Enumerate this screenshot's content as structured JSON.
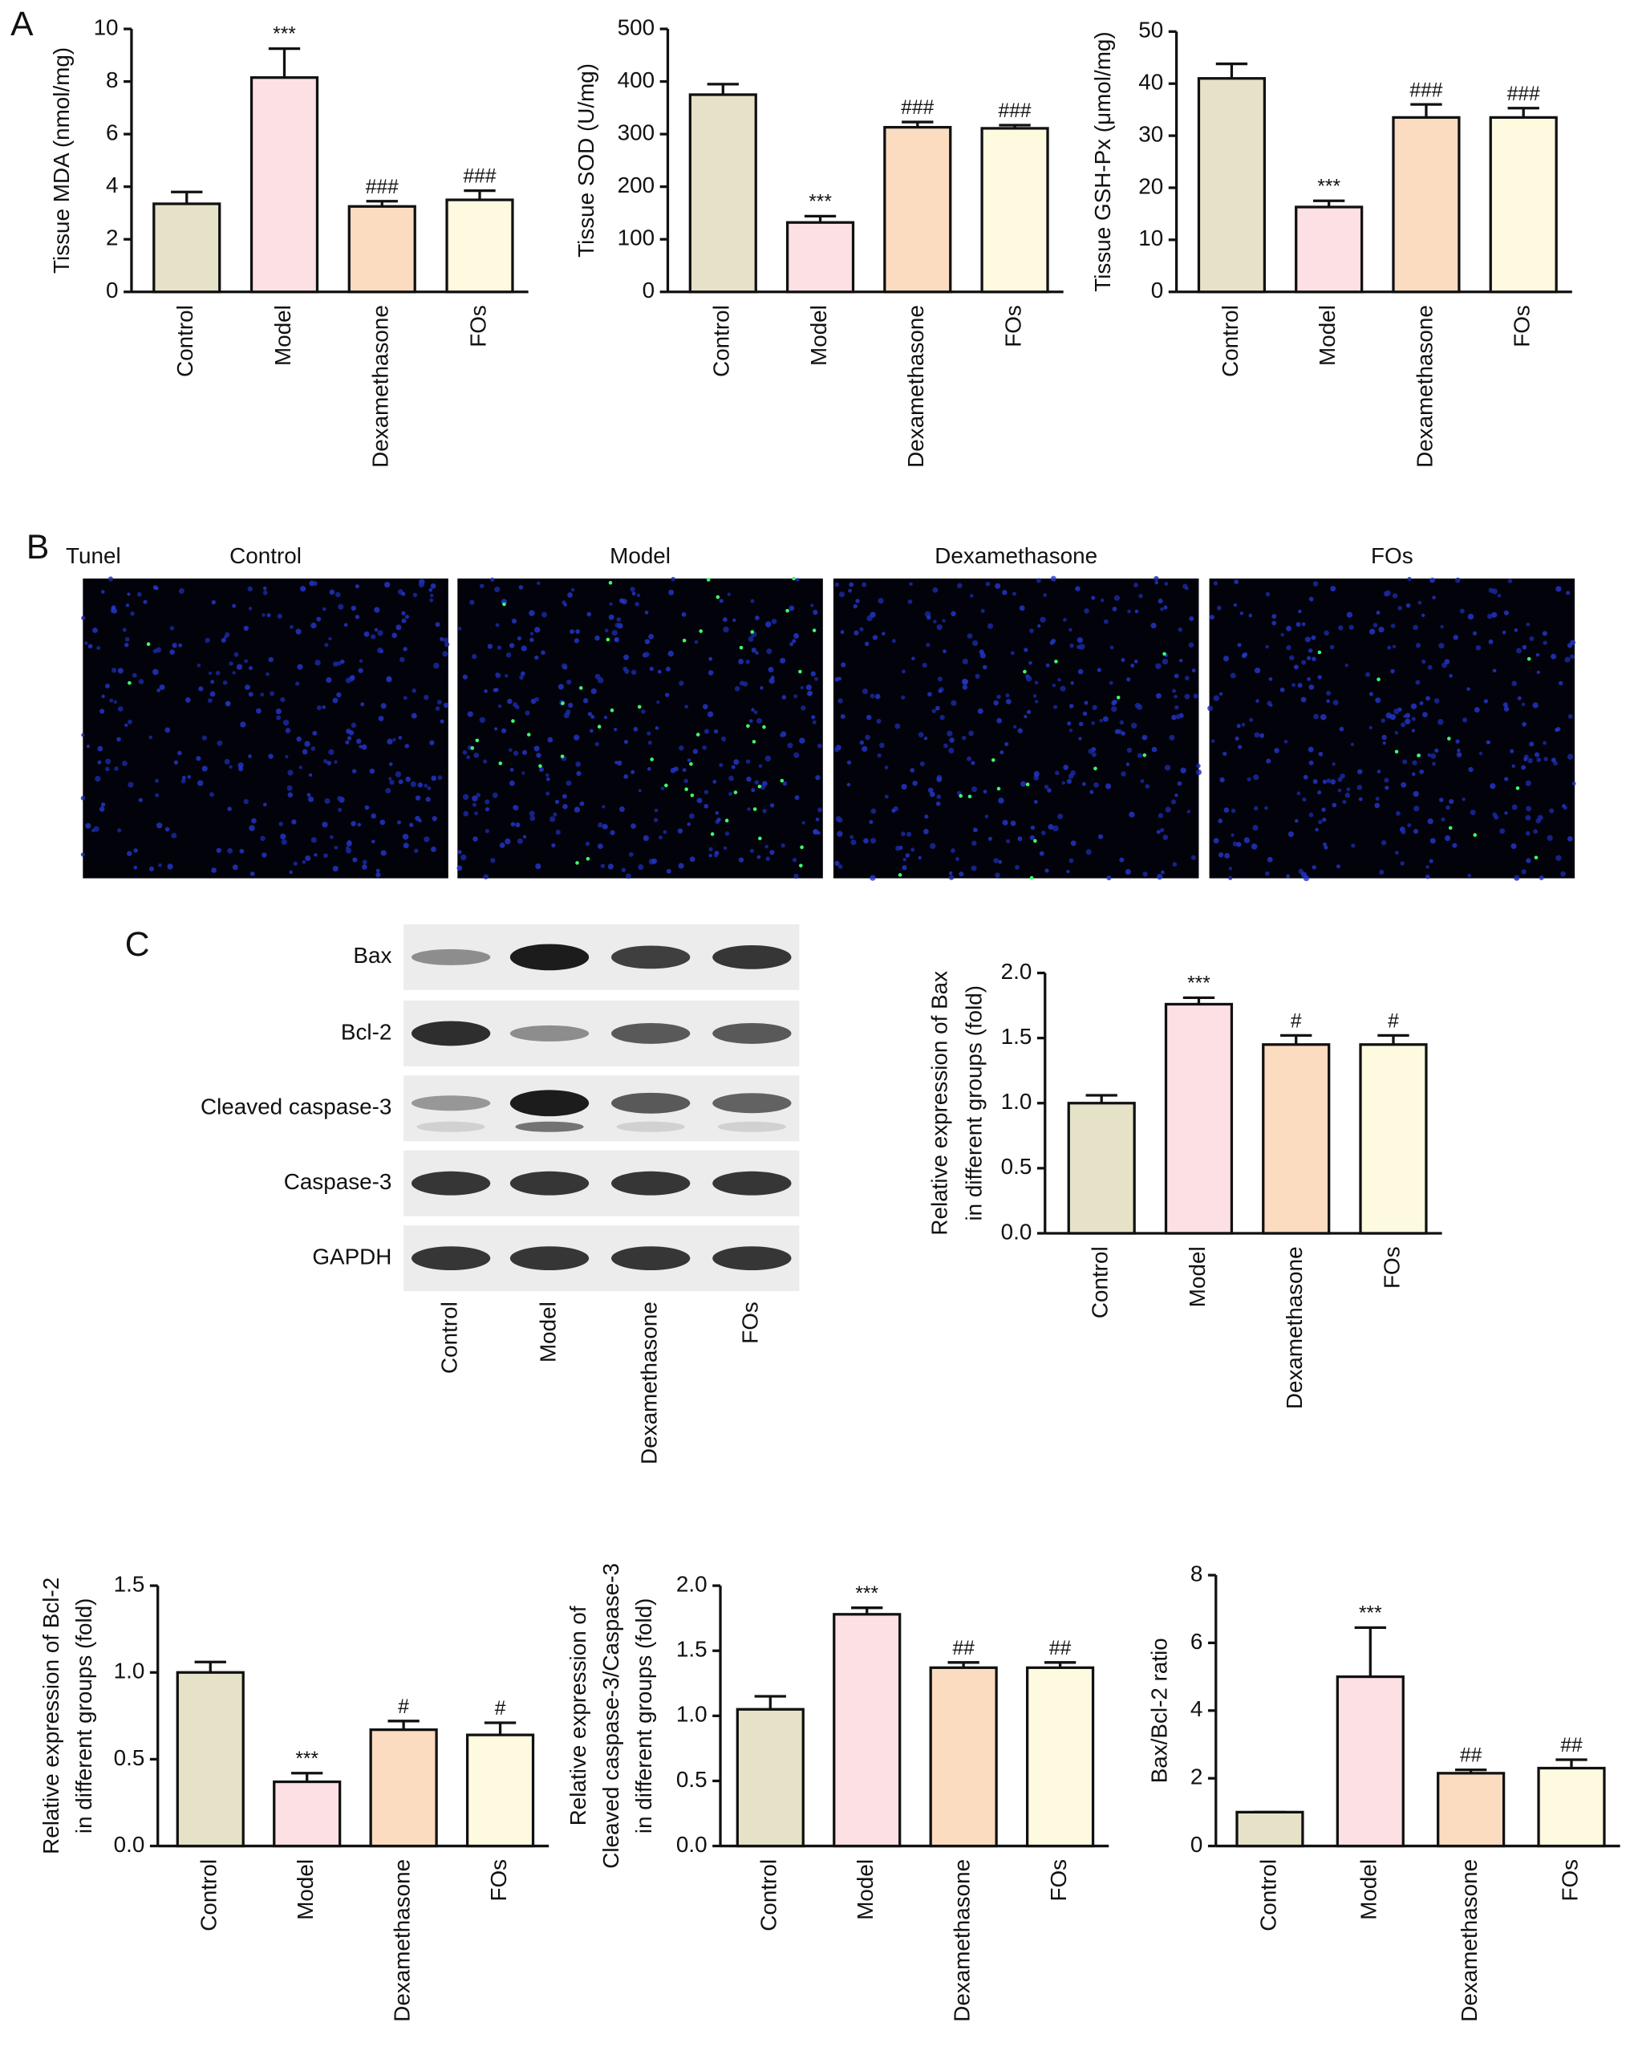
{
  "figure": {
    "panel_labels": [
      "A",
      "B",
      "C"
    ],
    "tunel": {
      "label": "Tunel",
      "groups": [
        "Control",
        "Model",
        "Dexamethasone",
        "FOs"
      ]
    },
    "blot": {
      "rows": [
        "Bax",
        "Bcl-2",
        "Cleaved caspase-3",
        "Caspase-3",
        "GAPDH"
      ],
      "lanes": [
        "Control",
        "Model",
        "Dexamethasone",
        "FOs"
      ]
    }
  },
  "chart_data": [
    {
      "type": "bar",
      "y_label": [
        "Tissue MDA (nmol/mg)"
      ],
      "categories": [
        "Control",
        "Model",
        "Dexamethasone",
        "FOs"
      ],
      "values": [
        3.35,
        8.15,
        3.25,
        3.5
      ],
      "errors": [
        0.45,
        1.1,
        0.2,
        0.35
      ],
      "annotations": [
        null,
        "***",
        "###",
        "###"
      ],
      "colors": [
        "#e6e2c8",
        "#fde0e4",
        "#fbdcc0",
        "#fefae0"
      ],
      "ylim": [
        0,
        10
      ],
      "yticks": [
        0,
        2,
        4,
        6,
        8,
        10
      ]
    },
    {
      "type": "bar",
      "y_label": [
        "Tissue SOD (U/mg)"
      ],
      "categories": [
        "Control",
        "Model",
        "Dexamethasone",
        "FOs"
      ],
      "values": [
        375,
        132,
        313,
        311
      ],
      "errors": [
        20,
        12,
        10,
        6
      ],
      "annotations": [
        null,
        "***",
        "###",
        "###"
      ],
      "colors": [
        "#e6e2c8",
        "#fde0e4",
        "#fbdcc0",
        "#fefae0"
      ],
      "ylim": [
        0,
        500
      ],
      "yticks": [
        0,
        100,
        200,
        300,
        400,
        500
      ]
    },
    {
      "type": "bar",
      "y_label": [
        "Tissue GSH-Px (μmol/mg)"
      ],
      "categories": [
        "Control",
        "Model",
        "Dexamethasone",
        "FOs"
      ],
      "values": [
        41,
        16.3,
        33.5,
        33.5
      ],
      "errors": [
        2.8,
        1.2,
        2.5,
        1.8
      ],
      "annotations": [
        null,
        "***",
        "###",
        "###"
      ],
      "colors": [
        "#e6e2c8",
        "#fde0e4",
        "#fbdcc0",
        "#fefae0"
      ],
      "ylim": [
        0,
        50
      ],
      "yticks": [
        0,
        10,
        20,
        30,
        40,
        50
      ]
    },
    {
      "type": "bar",
      "y_label": [
        "Relative expression of Bax",
        "in different groups (fold)"
      ],
      "categories": [
        "Control",
        "Model",
        "Dexamethasone",
        "FOs"
      ],
      "values": [
        1.0,
        1.76,
        1.45,
        1.45
      ],
      "errors": [
        0.06,
        0.05,
        0.07,
        0.07
      ],
      "annotations": [
        null,
        "***",
        "#",
        "#"
      ],
      "colors": [
        "#e6e2c8",
        "#fde0e4",
        "#fbdcc0",
        "#fefae0"
      ],
      "ylim": [
        0,
        2
      ],
      "yticks": [
        {
          "value": 0,
          "label": "0.0"
        },
        0.5,
        {
          "value": 1,
          "label": "1.0"
        },
        1.5,
        {
          "value": 2,
          "label": "2.0"
        }
      ]
    },
    {
      "type": "bar",
      "y_label": [
        "Relative expression of Bcl-2",
        "in different groups (fold)"
      ],
      "categories": [
        "Control",
        "Model",
        "Dexamethasone",
        "FOs"
      ],
      "values": [
        1.0,
        0.37,
        0.67,
        0.64
      ],
      "errors": [
        0.06,
        0.05,
        0.05,
        0.07
      ],
      "annotations": [
        null,
        "***",
        "#",
        "#"
      ],
      "colors": [
        "#e6e2c8",
        "#fde0e4",
        "#fbdcc0",
        "#fefae0"
      ],
      "ylim": [
        0,
        1.5
      ],
      "yticks": [
        {
          "value": 0,
          "label": "0.0"
        },
        0.5,
        {
          "value": 1,
          "label": "1.0"
        },
        1.5
      ]
    },
    {
      "type": "bar",
      "y_label": [
        "Relative expression of",
        "Cleaved caspase-3/Caspase-3",
        "in different groups (fold)"
      ],
      "categories": [
        "Control",
        "Model",
        "Dexamethasone",
        "FOs"
      ],
      "values": [
        1.05,
        1.78,
        1.37,
        1.37
      ],
      "errors": [
        0.1,
        0.05,
        0.04,
        0.04
      ],
      "annotations": [
        null,
        "***",
        "##",
        "##"
      ],
      "colors": [
        "#e6e2c8",
        "#fde0e4",
        "#fbdcc0",
        "#fefae0"
      ],
      "ylim": [
        0,
        2
      ],
      "yticks": [
        {
          "value": 0,
          "label": "0.0"
        },
        0.5,
        {
          "value": 1,
          "label": "1.0"
        },
        1.5,
        {
          "value": 2,
          "label": "2.0"
        }
      ]
    },
    {
      "type": "bar",
      "y_label": [
        "Bax/Bcl-2 ratio"
      ],
      "categories": [
        "Control",
        "Model",
        "Dexamethasone",
        "FOs"
      ],
      "values": [
        1.0,
        5.0,
        2.15,
        2.3
      ],
      "errors": [
        0,
        1.45,
        0.1,
        0.25
      ],
      "annotations": [
        null,
        "***",
        "##",
        "##"
      ],
      "colors": [
        "#e6e2c8",
        "#fde0e4",
        "#fbdcc0",
        "#fefae0"
      ],
      "ylim": [
        0,
        8
      ],
      "yticks": [
        0,
        2,
        4,
        6,
        8
      ]
    }
  ]
}
